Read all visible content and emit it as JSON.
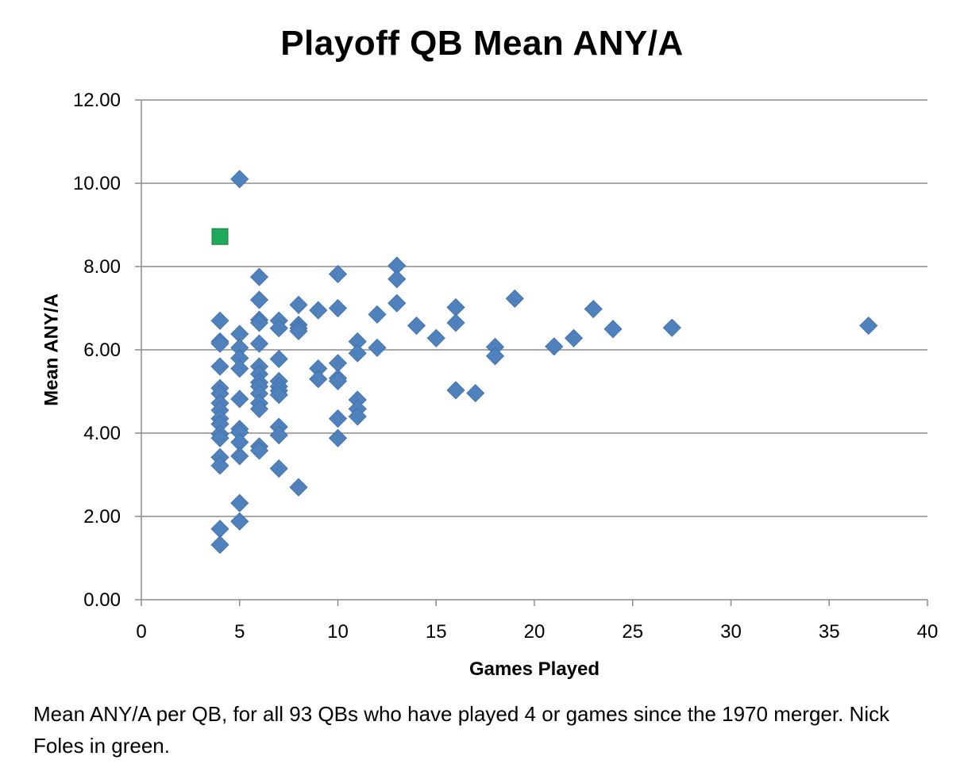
{
  "caption": "Mean ANY/A per QB, for all 93 QBs who have played 4 or games since the 1970 merger.  Nick Foles in green.",
  "chart_data": {
    "type": "scatter",
    "title": "Playoff QB Mean ANY/A",
    "xlabel": "Games Played",
    "ylabel": "Mean ANY/A",
    "xlim": [
      0,
      40
    ],
    "ylim": [
      0,
      12
    ],
    "x_ticks": [
      "0",
      "5",
      "10",
      "15",
      "20",
      "25",
      "30",
      "35",
      "40"
    ],
    "y_ticks": [
      "0.00",
      "2.00",
      "4.00",
      "6.00",
      "8.00",
      "10.00",
      "12.00"
    ],
    "grid": "horizontal",
    "legend": "none",
    "colors": {
      "series": "#4f81bd",
      "highlight": "#1fa95a",
      "highlight_border": "#1a7a45",
      "grid": "#8c8c8c"
    },
    "series": [
      {
        "marker": "diamond",
        "color": "#4f81bd",
        "points": [
          [
            4,
            6.7
          ],
          [
            4,
            6.2
          ],
          [
            4,
            6.15
          ],
          [
            4,
            5.6
          ],
          [
            4,
            5.08
          ],
          [
            4,
            4.95
          ],
          [
            4,
            4.72
          ],
          [
            4,
            4.55
          ],
          [
            4,
            4.35
          ],
          [
            4,
            4.22
          ],
          [
            4,
            3.98
          ],
          [
            4,
            3.88
          ],
          [
            4,
            3.42
          ],
          [
            4,
            3.22
          ],
          [
            4,
            1.7
          ],
          [
            4,
            1.32
          ],
          [
            5,
            10.1
          ],
          [
            5,
            6.38
          ],
          [
            5,
            6.05
          ],
          [
            5,
            5.8
          ],
          [
            5,
            5.55
          ],
          [
            5,
            4.82
          ],
          [
            5,
            4.1
          ],
          [
            5,
            4.02
          ],
          [
            5,
            3.78
          ],
          [
            5,
            3.45
          ],
          [
            5,
            2.32
          ],
          [
            5,
            1.88
          ],
          [
            6,
            7.75
          ],
          [
            6,
            7.2
          ],
          [
            6,
            6.72
          ],
          [
            6,
            6.65
          ],
          [
            6,
            6.15
          ],
          [
            6,
            5.6
          ],
          [
            6,
            5.42
          ],
          [
            6,
            5.22
          ],
          [
            6,
            5.12
          ],
          [
            6,
            4.95
          ],
          [
            6,
            4.72
          ],
          [
            6,
            4.58
          ],
          [
            6,
            3.68
          ],
          [
            6,
            3.58
          ],
          [
            7,
            6.7
          ],
          [
            7,
            6.52
          ],
          [
            7,
            5.78
          ],
          [
            7,
            5.25
          ],
          [
            7,
            5.12
          ],
          [
            7,
            5.02
          ],
          [
            7,
            4.92
          ],
          [
            7,
            4.15
          ],
          [
            7,
            3.95
          ],
          [
            7,
            3.15
          ],
          [
            8,
            7.08
          ],
          [
            8,
            6.6
          ],
          [
            8,
            6.52
          ],
          [
            8,
            6.45
          ],
          [
            8,
            2.7
          ],
          [
            9,
            6.95
          ],
          [
            9,
            5.55
          ],
          [
            9,
            5.3
          ],
          [
            10,
            7.82
          ],
          [
            10,
            7.0
          ],
          [
            10,
            5.68
          ],
          [
            10,
            5.32
          ],
          [
            10,
            5.25
          ],
          [
            10,
            4.35
          ],
          [
            10,
            3.88
          ],
          [
            11,
            6.2
          ],
          [
            11,
            5.92
          ],
          [
            11,
            4.8
          ],
          [
            11,
            4.58
          ],
          [
            11,
            4.4
          ],
          [
            12,
            6.85
          ],
          [
            12,
            6.05
          ],
          [
            13,
            8.02
          ],
          [
            13,
            7.7
          ],
          [
            13,
            7.12
          ],
          [
            14,
            6.58
          ],
          [
            15,
            6.28
          ],
          [
            16,
            7.02
          ],
          [
            16,
            6.65
          ],
          [
            16,
            5.03
          ],
          [
            17,
            4.96
          ],
          [
            18,
            6.07
          ],
          [
            18,
            5.85
          ],
          [
            19,
            7.23
          ],
          [
            21,
            6.08
          ],
          [
            22,
            6.28
          ],
          [
            23,
            6.98
          ],
          [
            24,
            6.5
          ],
          [
            27,
            6.53
          ],
          [
            37,
            6.58
          ]
        ]
      },
      {
        "marker": "square",
        "color": "#1fa95a",
        "points": [
          [
            4,
            8.72
          ]
        ]
      }
    ]
  }
}
